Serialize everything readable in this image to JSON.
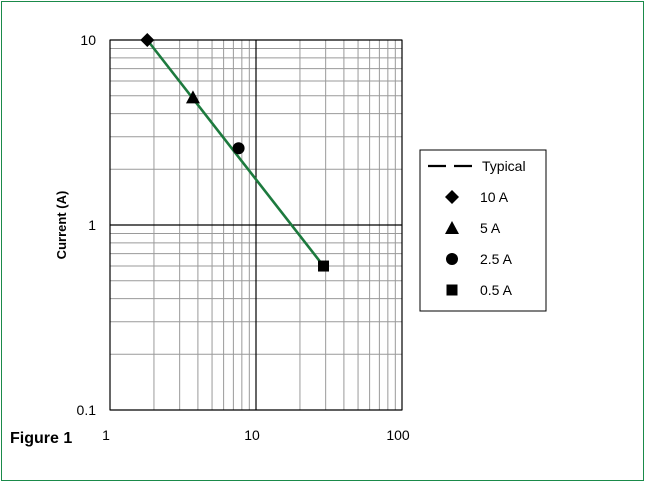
{
  "figure_caption": "Figure 1",
  "colors": {
    "frame": "#1a8a4a",
    "typical_line": "#1d7a3e",
    "grid": "#9a9a9a",
    "major_grid": "#000000"
  },
  "chart_data": {
    "type": "line",
    "xscale": "log",
    "yscale": "log",
    "xlim": [
      1,
      100
    ],
    "ylim": [
      0.1,
      10
    ],
    "xlabel": "",
    "ylabel": "Current (A)",
    "x_tick_labels": [
      "1",
      "10",
      "100"
    ],
    "y_tick_labels": [
      "0.1",
      "1",
      "10"
    ],
    "grid": true,
    "legend_position": "right",
    "series": [
      {
        "name": "Typical",
        "kind": "line",
        "x": [
          1.8,
          29
        ],
        "y": [
          10,
          0.6
        ]
      },
      {
        "name": "10 A",
        "kind": "point",
        "marker": "diamond",
        "x": [
          1.8
        ],
        "y": [
          10
        ]
      },
      {
        "name": "5 A",
        "kind": "point",
        "marker": "triangle",
        "x": [
          3.7
        ],
        "y": [
          4.9
        ]
      },
      {
        "name": "2.5 A",
        "kind": "point",
        "marker": "circle",
        "x": [
          7.6
        ],
        "y": [
          2.6
        ]
      },
      {
        "name": "0.5 A",
        "kind": "point",
        "marker": "square",
        "x": [
          29
        ],
        "y": [
          0.6
        ]
      }
    ]
  }
}
